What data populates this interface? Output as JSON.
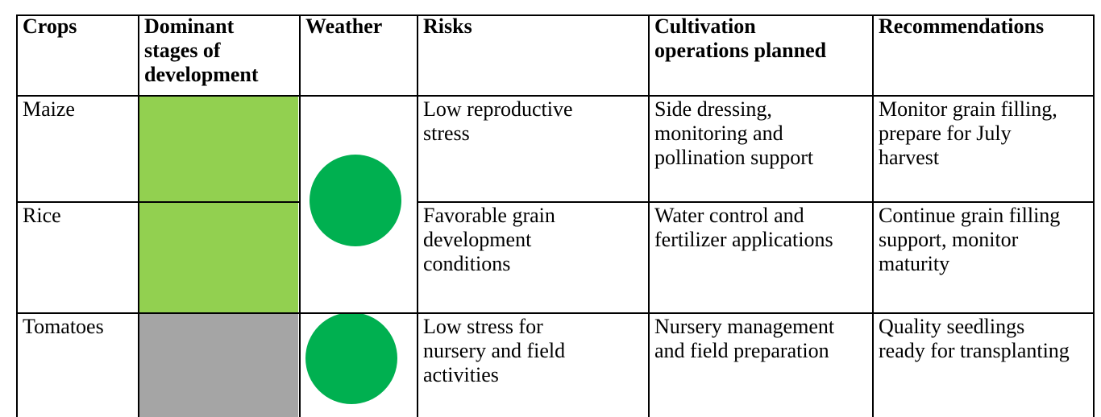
{
  "table": {
    "headers": [
      [
        "Crops"
      ],
      [
        "Dominant",
        "stages of",
        "development"
      ],
      [
        "Weather"
      ],
      [
        "Risks"
      ],
      [
        "Cultivation",
        "operations planned"
      ],
      [
        "Recommendations"
      ]
    ],
    "rows": [
      {
        "crop": [
          "Maize"
        ],
        "risks": [
          "Low reproductive",
          "stress"
        ],
        "operations": [
          "Side dressing,",
          "monitoring and",
          "pollination support"
        ],
        "recommendations": [
          "Monitor grain filling,",
          "prepare for July",
          "harvest"
        ]
      },
      {
        "crop": [
          "Rice"
        ],
        "risks": [
          "Favorable grain",
          "development",
          "conditions"
        ],
        "operations": [
          "Water control and",
          "fertilizer applications"
        ],
        "recommendations": [
          "Continue grain filling",
          "support, monitor",
          "maturity"
        ]
      },
      {
        "crop": [
          "Tomatoes"
        ],
        "risks": [
          "Low stress for",
          "nursery and field",
          "activities"
        ],
        "operations": [
          "Nursery management",
          "and field preparation"
        ],
        "recommendations": [
          "Quality seedlings",
          "ready for transplanting"
        ]
      }
    ]
  }
}
